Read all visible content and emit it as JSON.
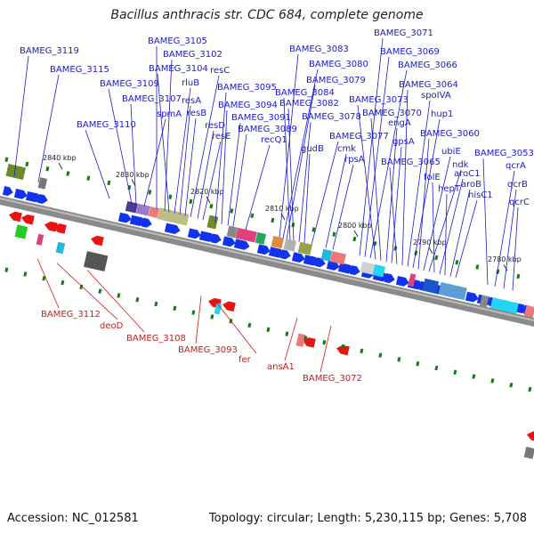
{
  "title": "Bacillus anthracis str. CDC 684, complete genome",
  "footer": {
    "accession": "Accession: NC_012581",
    "topology": "Topology: circular; Length: 5,230,115 bp; Genes: 5,708"
  },
  "colors": {
    "forward_label": "#1a1acc",
    "reverse_label": "#cc1a1a",
    "forward_gene": "#1133ee",
    "reverse_gene": "#ee1111",
    "backbone": "#8a8a8a",
    "tick": "#1a7a1a"
  },
  "position_ticks": [
    "2840 kbp",
    "2830 kbp",
    "2820 kbp",
    "2810 kbp",
    "2800 kbp",
    "2790 kbp",
    "2780 kbp"
  ],
  "forward_genes": [
    "BAMEG_3119",
    "BAMEG_3115",
    "BAMEG_3110",
    "BAMEG_3109",
    "BAMEG_3107",
    "spmA",
    "BAMEG_3105",
    "BAMEG_3102",
    "BAMEG_3104",
    "rluB",
    "resA",
    "resB",
    "resC",
    "resD",
    "resE",
    "BAMEG_3095",
    "BAMEG_3094",
    "BAMEG_3091",
    "BAMEG_3089",
    "recQ1",
    "BAMEG_3083",
    "BAMEG_3080",
    "BAMEG_3079",
    "BAMEG_3084",
    "BAMEG_3082",
    "BAMEG_3078",
    "gudB",
    "BAMEG_3077",
    "cmk",
    "rpsA",
    "BAMEG_3071",
    "BAMEG_3069",
    "BAMEG_3066",
    "BAMEG_3073",
    "BAMEG_3070",
    "engA",
    "gpsA",
    "BAMEG_3065",
    "BAMEG_3064",
    "spoIVA",
    "hup1",
    "BAMEG_3060",
    "ubiE",
    "ndk",
    "folE",
    "aroC1",
    "hepT",
    "aroB",
    "hisC1",
    "BAMEG_3053",
    "qcrA",
    "qcrB",
    "qcrC"
  ],
  "reverse_genes": [
    "BAMEG_3112",
    "deoD",
    "BAMEG_3108",
    "BAMEG_3093",
    "fer",
    "ansA1",
    "BAMEG_3072"
  ]
}
